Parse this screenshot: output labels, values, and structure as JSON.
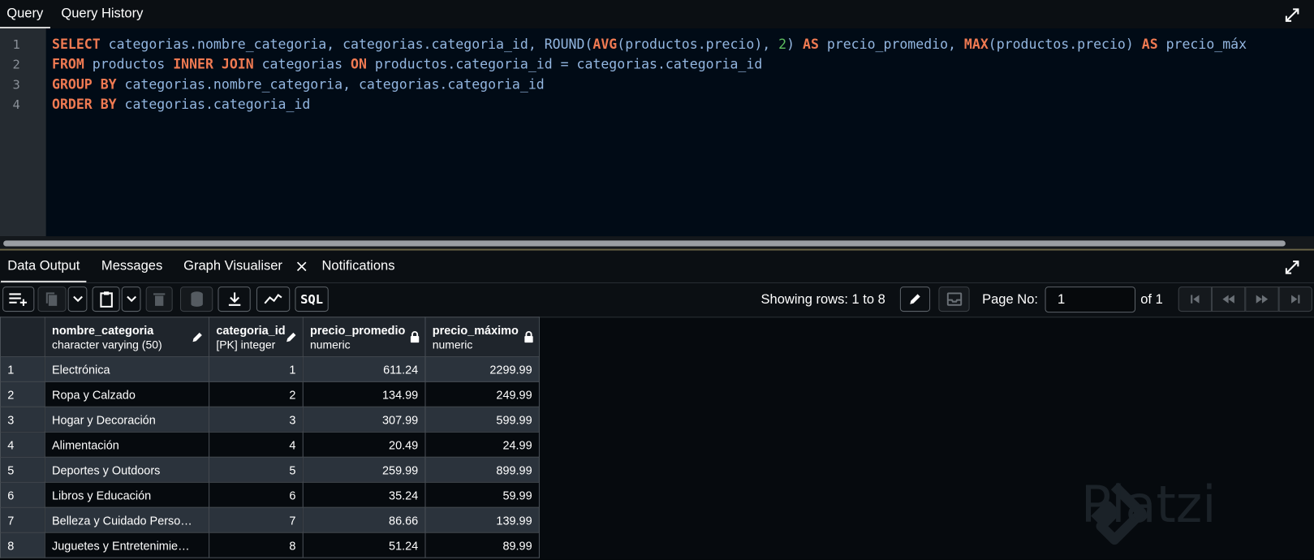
{
  "editor_tabs": [
    "Query",
    "Query History"
  ],
  "editor": {
    "line_numbers": [
      1,
      2,
      3,
      4
    ],
    "lines": [
      [
        {
          "text": "SELECT",
          "color": "#f07a52"
        },
        {
          "text": " categorias.nombre_categoria, categorias.categoria_id, ROUND(",
          "color": "#93b6e0"
        },
        {
          "text": "AVG",
          "color": "#f07a52"
        },
        {
          "text": "(productos.precio), ",
          "color": "#93b6e0"
        },
        {
          "text": "2",
          "color": "#5fbf5f"
        },
        {
          "text": ") ",
          "color": "#93b6e0"
        },
        {
          "text": "AS",
          "color": "#f07a52"
        },
        {
          "text": " precio_promedio, ",
          "color": "#93b6e0"
        },
        {
          "text": "MAX",
          "color": "#f07a52"
        },
        {
          "text": "(productos.precio) ",
          "color": "#93b6e0"
        },
        {
          "text": "AS",
          "color": "#f07a52"
        },
        {
          "text": " precio_máx",
          "color": "#93b6e0"
        }
      ],
      [
        {
          "text": "FROM",
          "color": "#f07a52"
        },
        {
          "text": " productos ",
          "color": "#93b6e0"
        },
        {
          "text": "INNER JOIN",
          "color": "#f07a52"
        },
        {
          "text": " categorias ",
          "color": "#93b6e0"
        },
        {
          "text": "ON",
          "color": "#f07a52"
        },
        {
          "text": " productos.categoria_id = categorias.categoria_id",
          "color": "#93b6e0"
        }
      ],
      [
        {
          "text": "GROUP BY",
          "color": "#f07a52"
        },
        {
          "text": " categorias.nombre_categoria, categorias.categoria_id",
          "color": "#93b6e0"
        }
      ],
      [
        {
          "text": "ORDER BY",
          "color": "#f07a52"
        },
        {
          "text": " categorias.categoria_id",
          "color": "#93b6e0"
        }
      ]
    ]
  },
  "output_tabs": [
    "Data Output",
    "Messages",
    "Graph Visualiser",
    "Notifications"
  ],
  "toolbar": {
    "sql_button": "SQL",
    "rows_info": "Showing rows: 1 to 8",
    "page_label": "Page No:",
    "page_value": 1,
    "page_total": "of 1"
  },
  "table": {
    "columns": [
      {
        "name": "nombre_categoria",
        "type": "character varying (50)"
      },
      {
        "name": "categoria_id",
        "type": "[PK] integer"
      },
      {
        "name": "precio_promedio",
        "type": "numeric"
      },
      {
        "name": "precio_máximo",
        "type": "numeric"
      }
    ],
    "rows": [
      [
        1,
        "Electrónica",
        1,
        611.24,
        2299.99
      ],
      [
        2,
        "Ropa y Calzado",
        2,
        134.99,
        249.99
      ],
      [
        3,
        "Hogar y Decoración",
        3,
        307.99,
        599.99
      ],
      [
        4,
        "Alimentación",
        4,
        20.49,
        24.99
      ],
      [
        5,
        "Deportes y Outdoors",
        5,
        259.99,
        899.99
      ],
      [
        6,
        "Libros y Educación",
        6,
        35.24,
        59.99
      ],
      [
        7,
        "Belleza y Cuidado Perso…",
        7,
        86.66,
        139.99
      ],
      [
        8,
        "Juguetes y Entretenimie…",
        8,
        51.24,
        89.99
      ]
    ]
  },
  "watermark": "Platzi"
}
